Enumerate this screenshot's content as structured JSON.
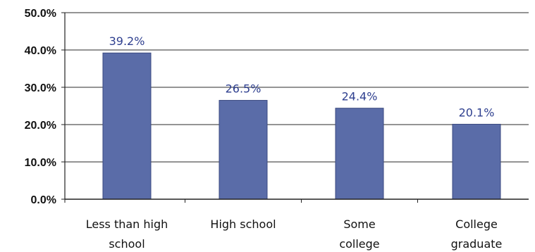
{
  "chart_data": {
    "type": "bar",
    "categories": [
      [
        "Less than high",
        "school"
      ],
      [
        "High school"
      ],
      [
        "Some",
        "college"
      ],
      [
        "College",
        "graduate"
      ]
    ],
    "values": [
      39.2,
      26.5,
      24.4,
      20.1
    ],
    "data_labels": [
      "39.2%",
      "26.5%",
      "24.4%",
      "20.1%"
    ],
    "y_ticks": [
      "0.0%",
      "10.0%",
      "20.0%",
      "30.0%",
      "40.0%",
      "50.0%"
    ],
    "ylim": [
      0,
      50
    ],
    "title": "",
    "xlabel": "",
    "ylabel": "",
    "grid": true,
    "legend": "none",
    "colors": {
      "bar": "#5a6ca8",
      "bar_edge": "#3b4a80",
      "data_label": "#2e3f8f",
      "gridline": "#555555",
      "axis": "#222222"
    }
  }
}
